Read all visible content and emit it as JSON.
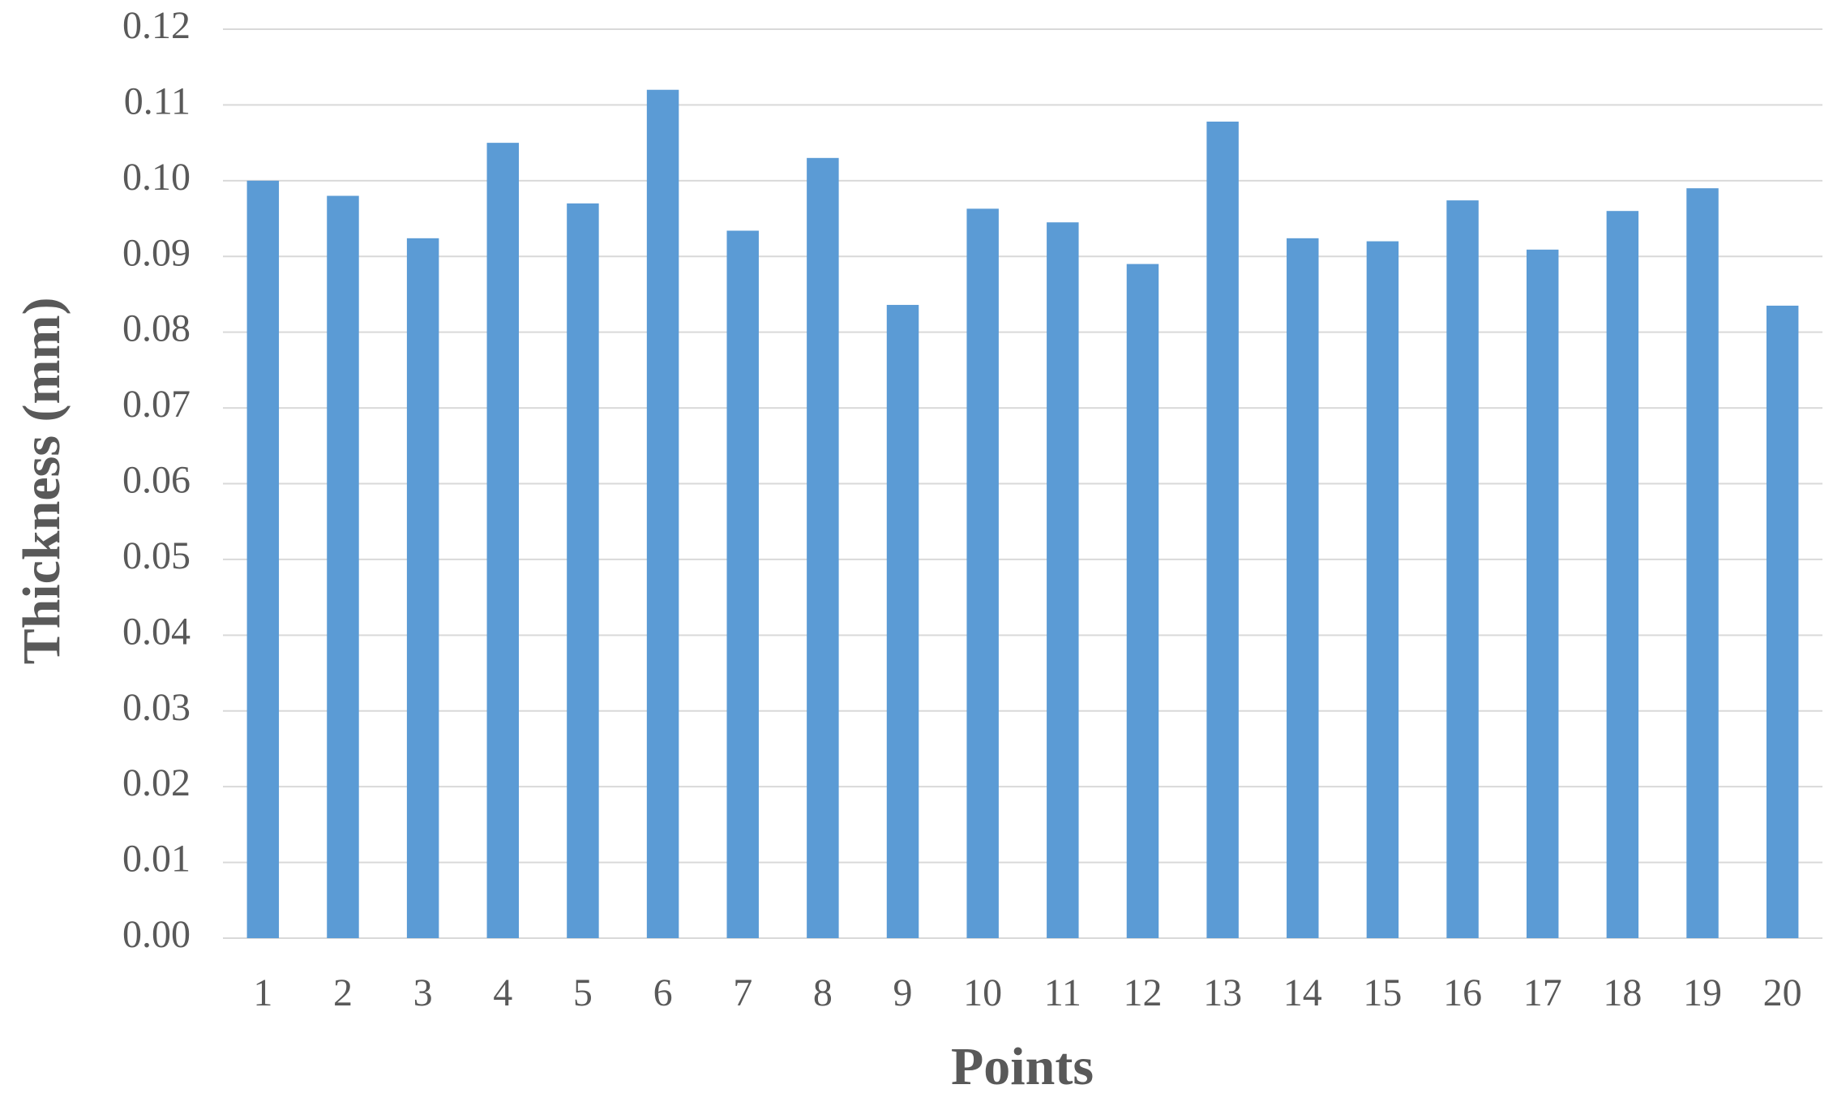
{
  "chart_data": {
    "type": "bar",
    "x_label": "Points",
    "y_label": "Thickness (mm)",
    "categories": [
      "1",
      "2",
      "3",
      "4",
      "5",
      "6",
      "7",
      "8",
      "9",
      "10",
      "11",
      "12",
      "13",
      "14",
      "15",
      "16",
      "17",
      "18",
      "19",
      "20"
    ],
    "values": [
      0.1,
      0.098,
      0.0924,
      0.105,
      0.097,
      0.112,
      0.0934,
      0.103,
      0.0836,
      0.0963,
      0.0945,
      0.089,
      0.1078,
      0.0924,
      0.092,
      0.0974,
      0.0909,
      0.096,
      0.099,
      0.0835
    ],
    "color": "#5b9bd5",
    "ylim": [
      0,
      0.12
    ],
    "yticks": [
      {
        "value": 0,
        "label": "0.00"
      },
      0.01,
      0.02,
      0.03,
      0.04,
      0.05,
      0.06,
      0.07,
      0.08,
      0.09,
      {
        "value": 0.1,
        "label": "0.10"
      },
      0.11,
      0.12
    ],
    "grid": true
  }
}
